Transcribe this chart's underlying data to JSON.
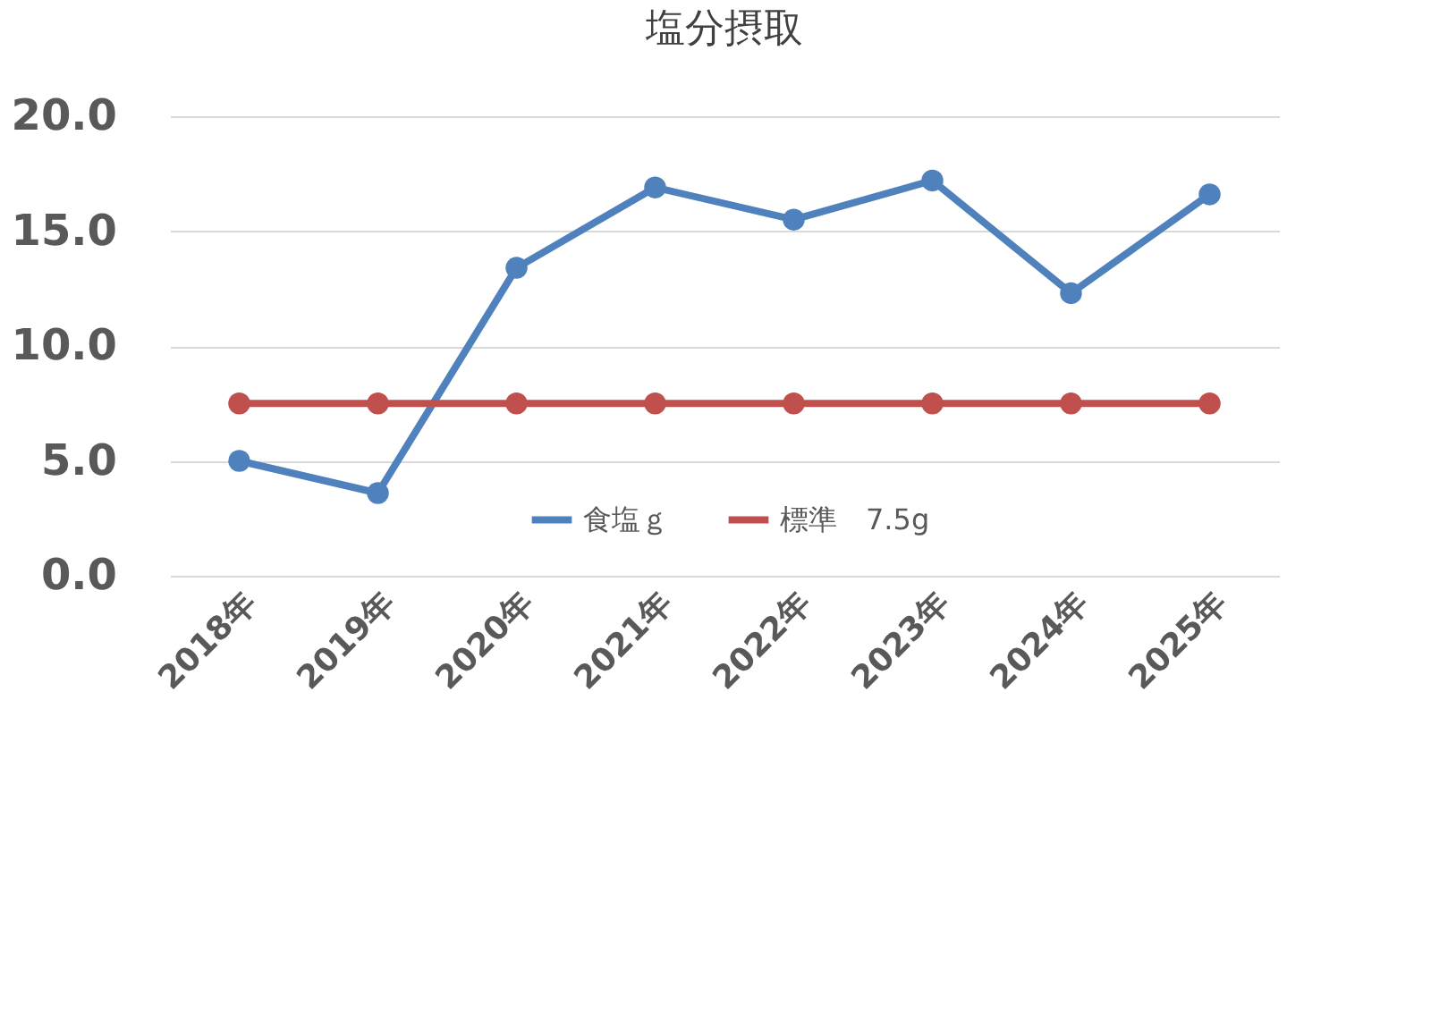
{
  "chart_data": {
    "type": "line",
    "title": "塩分摂取",
    "categories": [
      "2018年",
      "2019年",
      "2020年",
      "2021年",
      "2022年",
      "2023年",
      "2024年",
      "2025年"
    ],
    "series": [
      {
        "name": "食塩ｇ",
        "color": "#4f81bd",
        "values": [
          5.0,
          3.6,
          13.4,
          16.9,
          15.5,
          17.2,
          12.3,
          16.6
        ]
      },
      {
        "name": "標準　7.5g",
        "color": "#c0504d",
        "values": [
          7.5,
          7.5,
          7.5,
          7.5,
          7.5,
          7.5,
          7.5,
          7.5
        ]
      }
    ],
    "ylim": [
      0,
      20
    ],
    "yticks": [
      {
        "value": 0,
        "label": "0.0"
      },
      {
        "value": 5,
        "label": "5.0"
      },
      {
        "value": 10,
        "label": "10.0"
      },
      {
        "value": 15,
        "label": "15.0"
      },
      {
        "value": 20,
        "label": "20.0"
      }
    ],
    "grid": "y",
    "legend": "bottom",
    "marker": "circle",
    "line_style": "solid"
  }
}
